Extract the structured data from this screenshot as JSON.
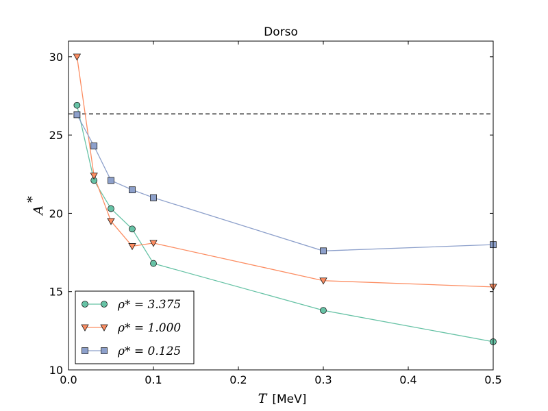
{
  "chart_data": {
    "type": "line",
    "title": "Dorso",
    "xlabel": {
      "symbol": "T",
      "unit": "[MeV]"
    },
    "ylabel": {
      "symbol": "A",
      "superscript": "*"
    },
    "xlim": [
      0.0,
      0.5
    ],
    "ylim": [
      10,
      31
    ],
    "xticks": [
      "0.0",
      "0.1",
      "0.2",
      "0.3",
      "0.4",
      "0.5"
    ],
    "yticks": [
      "10",
      "15",
      "20",
      "25",
      "30"
    ],
    "reference_line": {
      "y": 26.35,
      "style": "dashed",
      "color": "#000000"
    },
    "legend_position": "lower-left",
    "series": [
      {
        "name": "ρ* = 3.375",
        "color": "#66c2a5",
        "edge_color": "#1a1a1a",
        "marker": "circle",
        "x": [
          0.01,
          0.03,
          0.05,
          0.075,
          0.1,
          0.3,
          0.5
        ],
        "y": [
          26.9,
          22.1,
          20.3,
          19.0,
          16.8,
          13.8,
          11.8
        ]
      },
      {
        "name": "ρ* = 1.000",
        "color": "#fc8d62",
        "edge_color": "#1a1a1a",
        "marker": "triangle-down",
        "x": [
          0.01,
          0.03,
          0.05,
          0.075,
          0.1,
          0.3,
          0.5
        ],
        "y": [
          30.0,
          22.4,
          19.5,
          17.9,
          18.1,
          15.7,
          15.3
        ]
      },
      {
        "name": "ρ* = 0.125",
        "color": "#8da0cb",
        "edge_color": "#1a1a1a",
        "marker": "square",
        "x": [
          0.01,
          0.03,
          0.05,
          0.075,
          0.1,
          0.3,
          0.5
        ],
        "y": [
          26.3,
          24.3,
          22.1,
          21.5,
          21.0,
          17.6,
          18.0
        ]
      }
    ]
  }
}
